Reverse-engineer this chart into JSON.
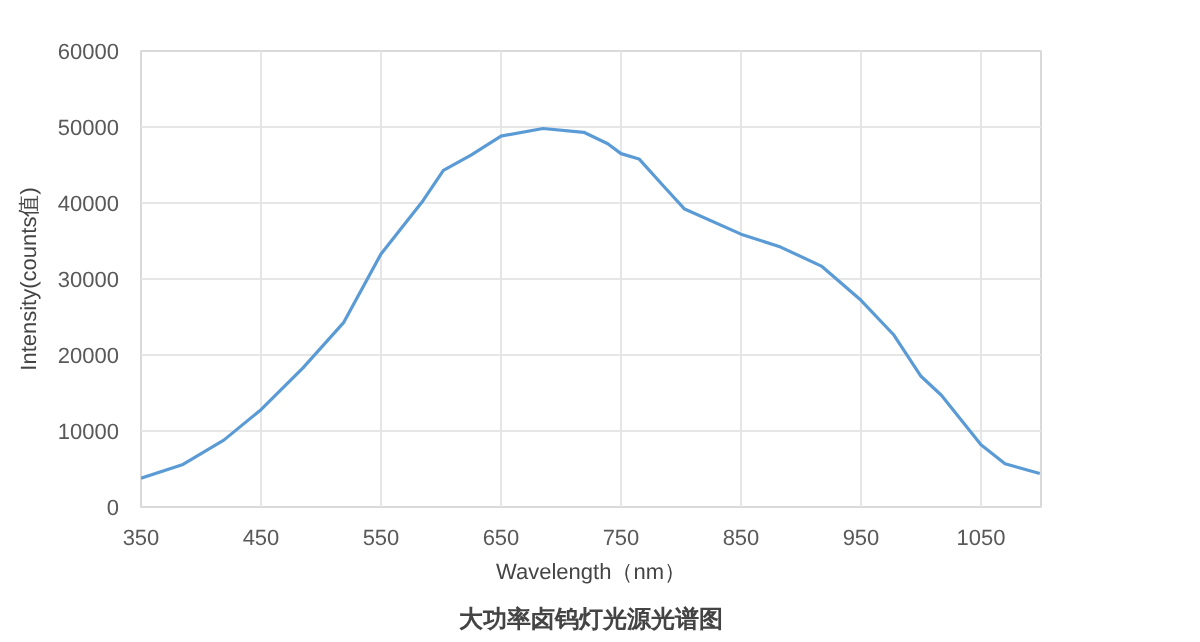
{
  "chart_data": {
    "type": "line",
    "title": "大功率卤钨灯光源光谱图",
    "xlabel": "Wavelength（nm）",
    "ylabel": "Intensity(counts值)",
    "x": [
      350,
      385,
      419,
      450,
      485,
      519,
      550,
      585,
      602,
      625,
      650,
      685,
      719,
      739,
      750,
      765,
      785,
      803,
      850,
      883,
      917,
      950,
      977,
      1000,
      1017,
      1050,
      1070,
      1099
    ],
    "series": [
      {
        "color": "#5b9bd5",
        "values": [
          3800,
          5600,
          8800,
          12800,
          18300,
          24300,
          33300,
          40300,
          44300,
          46300,
          48800,
          49800,
          49300,
          47800,
          46500,
          45800,
          42300,
          39200,
          35900,
          34200,
          31700,
          27200,
          22700,
          17200,
          14700,
          8200,
          5700,
          4400
        ]
      }
    ],
    "xlim": [
      350,
      1100
    ],
    "xticks": [
      350,
      450,
      550,
      650,
      750,
      850,
      950,
      1050
    ],
    "ylim": [
      0,
      60000
    ],
    "yticks": [
      0,
      10000,
      20000,
      30000,
      40000,
      50000,
      60000
    ],
    "grid": true,
    "marker": "none",
    "line_style": "solid"
  }
}
